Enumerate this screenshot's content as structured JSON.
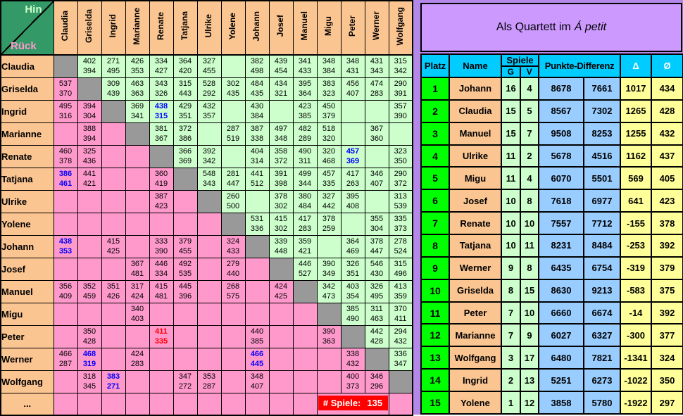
{
  "colors": {
    "hin_bg": "#ccffcc",
    "rueck_bg": "#ff99cc",
    "diagonal_bg": "#999999",
    "header_bg": "#fbc592",
    "corner_bg": "#339966",
    "hin_text": "#ccffcc",
    "rueck_text": "#ff99cc",
    "blue_score": "#0000ff",
    "red_score": "#ff0000",
    "banner_bg": "#ff0000",
    "banner_text": "#ffffff",
    "panel_bg": "#b388e8",
    "title_bg": "#cc99ff",
    "table_header_bg": "#00ccff",
    "delta_header_bg": "#0000ee",
    "delta_header_text": "#ffffff",
    "rank_bg": "#00ff00",
    "name_bg": "#fbc592",
    "spiele_bg": "#ccffcc",
    "punkte_bg": "#99ccff",
    "avg_bg": "#ffff99"
  },
  "matrix": {
    "corner": {
      "hin_label": "Hin",
      "rueck_label": "Rück"
    },
    "players": [
      "Claudia",
      "Griselda",
      "Ingrid",
      "Marianne",
      "Renate",
      "Tatjana",
      "Ulrike",
      "Yolene",
      "Johann",
      "Josef",
      "Manuel",
      "Migu",
      "Peter",
      "Werner",
      "Wolfgang"
    ],
    "ellipsis_row_label": "...",
    "games_banner": {
      "label": "# Spiele:",
      "value": "135",
      "start_col": "Migu",
      "end_col": "Werner"
    },
    "cells": {
      "Claudia": {
        "Griselda": [
          402,
          394
        ],
        "Ingrid": [
          271,
          495
        ],
        "Marianne": [
          426,
          353
        ],
        "Renate": [
          334,
          427
        ],
        "Tatjana": [
          364,
          420
        ],
        "Ulrike": [
          327,
          455
        ],
        "Johann": [
          382,
          498
        ],
        "Josef": [
          439,
          454
        ],
        "Manuel": [
          341,
          433
        ],
        "Migu": [
          348,
          384
        ],
        "Peter": [
          348,
          431
        ],
        "Werner": [
          431,
          343
        ],
        "Wolfgang": [
          315,
          342
        ]
      },
      "Griselda": {
        "Claudia": [
          537,
          370
        ],
        "Ingrid": [
          309,
          439
        ],
        "Marianne": [
          463,
          363
        ],
        "Renate": [
          343,
          326
        ],
        "Tatjana": [
          315,
          443
        ],
        "Ulrike": [
          528,
          292
        ],
        "Yolene": [
          302,
          435
        ],
        "Johann": [
          484,
          435
        ],
        "Josef": [
          434,
          321
        ],
        "Manuel": [
          395,
          364
        ],
        "Migu": [
          383,
          323
        ],
        "Peter": [
          456,
          407
        ],
        "Werner": [
          474,
          283
        ],
        "Wolfgang": [
          290,
          391
        ]
      },
      "Ingrid": {
        "Claudia": [
          495,
          316
        ],
        "Griselda": [
          394,
          304
        ],
        "Marianne": [
          369,
          341
        ],
        "Renate": [
          438,
          315,
          "blue"
        ],
        "Tatjana": [
          429,
          351
        ],
        "Ulrike": [
          432,
          357
        ],
        "Johann": [
          430,
          384
        ],
        "Manuel": [
          423,
          385
        ],
        "Migu": [
          450,
          379
        ],
        "Wolfgang": [
          357,
          390
        ]
      },
      "Marianne": {
        "Griselda": [
          388,
          394
        ],
        "Renate": [
          381,
          367
        ],
        "Tatjana": [
          372,
          386
        ],
        "Yolene": [
          287,
          519
        ],
        "Johann": [
          387,
          338
        ],
        "Josef": [
          497,
          348
        ],
        "Manuel": [
          482,
          289
        ],
        "Migu": [
          518,
          320
        ],
        "Werner": [
          367,
          360
        ]
      },
      "Renate": {
        "Claudia": [
          460,
          378
        ],
        "Griselda": [
          325,
          436
        ],
        "Tatjana": [
          366,
          369
        ],
        "Ulrike": [
          392,
          342
        ],
        "Johann": [
          404,
          314
        ],
        "Josef": [
          358,
          372
        ],
        "Manuel": [
          490,
          311
        ],
        "Migu": [
          320,
          468
        ],
        "Peter": [
          457,
          369,
          "blue"
        ],
        "Wolfgang": [
          323,
          350
        ]
      },
      "Tatjana": {
        "Claudia": [
          386,
          461,
          "blue"
        ],
        "Griselda": [
          441,
          421
        ],
        "Renate": [
          360,
          419
        ],
        "Ulrike": [
          548,
          343
        ],
        "Yolene": [
          281,
          447
        ],
        "Johann": [
          441,
          512
        ],
        "Josef": [
          391,
          398
        ],
        "Manuel": [
          499,
          344
        ],
        "Migu": [
          457,
          335
        ],
        "Peter": [
          417,
          263
        ],
        "Werner": [
          346,
          407
        ],
        "Wolfgang": [
          290,
          372
        ]
      },
      "Ulrike": {
        "Renate": [
          387,
          423
        ],
        "Yolene": [
          260,
          500
        ],
        "Josef": [
          378,
          302
        ],
        "Manuel": [
          380,
          484
        ],
        "Migu": [
          327,
          442
        ],
        "Peter": [
          395,
          408
        ],
        "Wolfgang": [
          313,
          539
        ]
      },
      "Yolene": {
        "Johann": [
          531,
          336
        ],
        "Josef": [
          415,
          302
        ],
        "Manuel": [
          417,
          283
        ],
        "Migu": [
          378,
          259
        ],
        "Werner": [
          355,
          304
        ],
        "Wolfgang": [
          335,
          373
        ]
      },
      "Johann": {
        "Claudia": [
          438,
          353,
          "blue"
        ],
        "Ingrid": [
          415,
          425
        ],
        "Renate": [
          333,
          390
        ],
        "Tatjana": [
          379,
          455
        ],
        "Yolene": [
          324,
          433
        ],
        "Josef": [
          339,
          448
        ],
        "Manuel": [
          359,
          421
        ],
        "Peter": [
          364,
          469
        ],
        "Werner": [
          378,
          447
        ],
        "Wolfgang": [
          278,
          524
        ]
      },
      "Josef": {
        "Marianne": [
          367,
          481
        ],
        "Renate": [
          446,
          334
        ],
        "Tatjana": [
          492,
          535
        ],
        "Yolene": [
          279,
          440
        ],
        "Manuel": [
          446,
          527
        ],
        "Migu": [
          390,
          349
        ],
        "Peter": [
          326,
          351
        ],
        "Werner": [
          546,
          430
        ],
        "Wolfgang": [
          315,
          496
        ]
      },
      "Manuel": {
        "Claudia": [
          356,
          409
        ],
        "Griselda": [
          352,
          459
        ],
        "Ingrid": [
          351,
          426
        ],
        "Marianne": [
          317,
          424
        ],
        "Renate": [
          415,
          481
        ],
        "Tatjana": [
          445,
          396
        ],
        "Yolene": [
          268,
          575
        ],
        "Josef": [
          424,
          425
        ],
        "Migu": [
          342,
          473
        ],
        "Peter": [
          403,
          354
        ],
        "Werner": [
          326,
          495
        ],
        "Wolfgang": [
          413,
          359
        ]
      },
      "Migu": {
        "Marianne": [
          340,
          403
        ],
        "Peter": [
          385,
          490
        ],
        "Werner": [
          311,
          463
        ],
        "Wolfgang": [
          370,
          411
        ]
      },
      "Peter": {
        "Griselda": [
          350,
          428
        ],
        "Renate": [
          411,
          335,
          "red"
        ],
        "Johann": [
          440,
          385
        ],
        "Migu": [
          390,
          363
        ],
        "Werner": [
          442,
          428
        ],
        "Wolfgang": [
          294,
          432
        ]
      },
      "Werner": {
        "Claudia": [
          466,
          287
        ],
        "Griselda": [
          468,
          319,
          "blue"
        ],
        "Marianne": [
          424,
          283
        ],
        "Johann": [
          466,
          445,
          "blue"
        ],
        "Peter": [
          338,
          432
        ],
        "Wolfgang": [
          336,
          347
        ]
      },
      "Wolfgang": {
        "Griselda": [
          318,
          345
        ],
        "Ingrid": [
          383,
          271,
          "blue"
        ],
        "Tatjana": [
          347,
          272
        ],
        "Ulrike": [
          353,
          287
        ],
        "Johann": [
          348,
          407
        ],
        "Peter": [
          400,
          373
        ],
        "Werner": [
          346,
          296
        ]
      }
    }
  },
  "standings": {
    "title_regular": "Als Quartett im",
    "title_italic": "Á petit",
    "headers": {
      "platz": "Platz",
      "name": "Name",
      "spiele": "Spiele",
      "g": "G",
      "v": "V",
      "punkte": "Punkte-Differenz",
      "delta": "Δ",
      "avg": "Ø"
    },
    "rows": [
      [
        1,
        "Johann",
        16,
        4,
        8678,
        7661,
        1017,
        434
      ],
      [
        2,
        "Claudia",
        15,
        5,
        8567,
        7302,
        1265,
        428
      ],
      [
        3,
        "Manuel",
        15,
        7,
        9508,
        8253,
        1255,
        432
      ],
      [
        4,
        "Ulrike",
        11,
        2,
        5678,
        4516,
        1162,
        437
      ],
      [
        5,
        "Migu",
        11,
        4,
        6070,
        5501,
        569,
        405
      ],
      [
        6,
        "Josef",
        10,
        8,
        7618,
        6977,
        641,
        423
      ],
      [
        7,
        "Renate",
        10,
        10,
        7557,
        7712,
        -155,
        378
      ],
      [
        8,
        "Tatjana",
        10,
        11,
        8231,
        8484,
        -253,
        392
      ],
      [
        9,
        "Werner",
        9,
        8,
        6435,
        6754,
        -319,
        379
      ],
      [
        10,
        "Griselda",
        8,
        15,
        8630,
        9213,
        -583,
        375
      ],
      [
        11,
        "Peter",
        7,
        10,
        6660,
        6674,
        -14,
        392
      ],
      [
        12,
        "Marianne",
        7,
        9,
        6027,
        6327,
        -300,
        377
      ],
      [
        13,
        "Wolfgang",
        3,
        17,
        6480,
        7821,
        -1341,
        324
      ],
      [
        14,
        "Ingrid",
        2,
        13,
        5251,
        6273,
        -1022,
        350
      ],
      [
        15,
        "Yolene",
        1,
        12,
        3858,
        5780,
        -1922,
        297
      ]
    ]
  }
}
